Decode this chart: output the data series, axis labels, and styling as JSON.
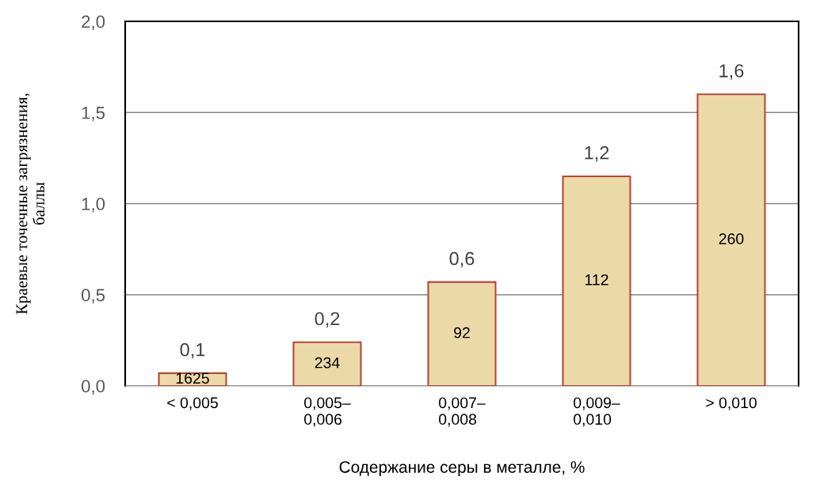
{
  "chart_data": {
    "type": "bar",
    "xlabel": "Содержание серы в металле, %",
    "ylabel": "Краевые точечные загрязнения,\nбаллы",
    "categories": [
      "< 0,005",
      "0,005–\n0,006",
      "0,007–\n0,008",
      "0,009–\n0,010",
      "> 0,010"
    ],
    "values": [
      0.07,
      0.24,
      0.57,
      1.15,
      1.6
    ],
    "value_labels": [
      "0,1",
      "0,2",
      "0,6",
      "1,2",
      "1,6"
    ],
    "color": "#ecd9a8",
    "ylim": [
      0,
      2
    ],
    "yticks": [
      {
        "value": 0,
        "label": "0,0"
      },
      {
        "value": 0.5,
        "label": "0,5"
      },
      {
        "value": 1,
        "label": "1,0"
      },
      {
        "value": 1.5,
        "label": "1,5"
      },
      {
        "value": 2,
        "label": "2,0"
      }
    ],
    "grid": "y",
    "annotations": [
      "1625",
      "234",
      "92",
      "112",
      "260"
    ]
  }
}
